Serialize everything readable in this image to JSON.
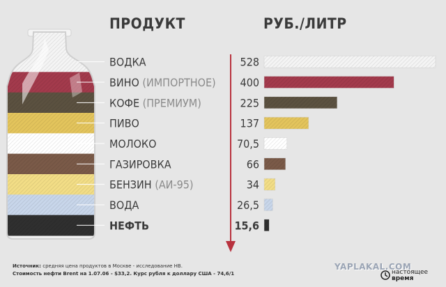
{
  "chart_data": {
    "type": "bar",
    "orientation": "horizontal",
    "column_headers": {
      "product": "ПРОДУКТ",
      "price": "РУБ./ЛИТР"
    },
    "categories": [
      {
        "name": "ВОДКА",
        "note": "",
        "value_label": "528",
        "value": 528,
        "color": "#f4f4f4",
        "bold": false
      },
      {
        "name": "ВИНО",
        "note": "(ИМПОРТНОЕ)",
        "value_label": "400",
        "value": 400,
        "color": "#a33a4c",
        "bold": false
      },
      {
        "name": "КОФЕ",
        "note": "(ПРЕМИУМ)",
        "value_label": "225",
        "value": 225,
        "color": "#5b5140",
        "bold": false
      },
      {
        "name": "ПИВО",
        "note": "",
        "value_label": "137",
        "value": 137,
        "color": "#e3c45c",
        "bold": false
      },
      {
        "name": "МОЛОКО",
        "note": "",
        "value_label": "70,5",
        "value": 70.5,
        "color": "#ffffff",
        "bold": false
      },
      {
        "name": "ГАЗИРОВКА",
        "note": "",
        "value_label": "66",
        "value": 66,
        "color": "#7a5a48",
        "bold": false
      },
      {
        "name": "БЕНЗИН",
        "note": "(АИ-95)",
        "value_label": "34",
        "value": 34,
        "color": "#f2dd86",
        "bold": false
      },
      {
        "name": "ВОДА",
        "note": "",
        "value_label": "26,5",
        "value": 26.5,
        "color": "#c8d6ea",
        "bold": false
      },
      {
        "name": "НЕФТЬ",
        "note": "",
        "value_label": "15,6",
        "value": 15.6,
        "color": "#2f2f2f",
        "bold": true
      }
    ],
    "xlim": [
      0,
      528
    ]
  },
  "source": {
    "label": "Источник:",
    "line1": "средняя цена продуктов в Москве - исследование НВ.",
    "line2_bold": "Стоимость нефти Brent на 1.07.06 - $33,2. Курс рубля к доллару США - 74,6/1"
  },
  "watermark": "YAPLAKAL.COM",
  "logo": {
    "line1": "настоящее",
    "line2": "время"
  },
  "colors": {
    "text": "#3a3a3a",
    "axis_arrow": "#b8323e",
    "leader_line": "#ffffff"
  }
}
